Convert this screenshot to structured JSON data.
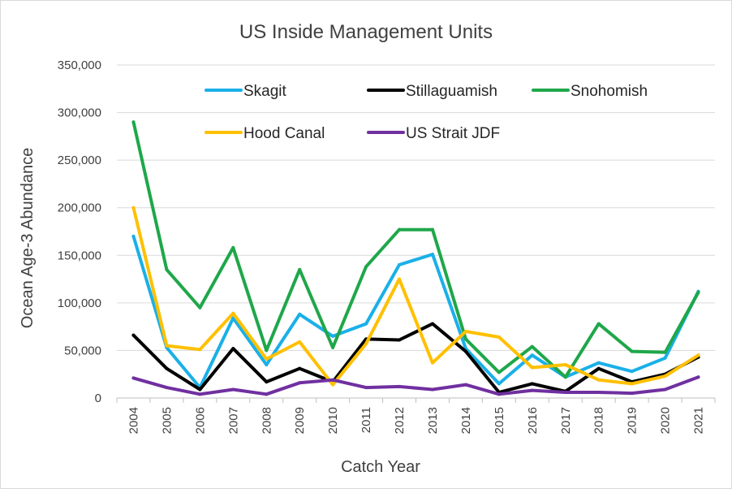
{
  "chart_data": {
    "type": "line",
    "title": "US Inside Management Units",
    "xlabel": "Catch Year",
    "ylabel": "Ocean Age-3 Abundance",
    "ylim": [
      0,
      350000
    ],
    "y_ticks": [
      0,
      50000,
      100000,
      150000,
      200000,
      250000,
      300000,
      350000
    ],
    "y_tick_labels": [
      "0",
      "50,000",
      "100,000",
      "150,000",
      "200,000",
      "250,000",
      "300,000",
      "350,000"
    ],
    "categories": [
      "2004",
      "2005",
      "2006",
      "2007",
      "2008",
      "2009",
      "2010",
      "2011",
      "2012",
      "2013",
      "2014",
      "2015",
      "2016",
      "2017",
      "2018",
      "2019",
      "2020",
      "2021"
    ],
    "grid": "horizontal",
    "legend_position": "top, inside plot",
    "series": [
      {
        "name": "Skagit",
        "color": "#1ab0e8",
        "values": [
          170000,
          53000,
          11000,
          84000,
          35000,
          88000,
          65000,
          78000,
          140000,
          151000,
          52000,
          15000,
          45000,
          22000,
          37000,
          28000,
          42000,
          112000
        ]
      },
      {
        "name": "Stillaguamish",
        "color": "#000000",
        "values": [
          66000,
          31000,
          9000,
          52000,
          17000,
          31000,
          17000,
          62000,
          61000,
          78000,
          49000,
          6000,
          15000,
          7000,
          31000,
          17000,
          25000,
          43000
        ]
      },
      {
        "name": "Snohomish",
        "color": "#1fa74a",
        "values": [
          290000,
          135000,
          95000,
          158000,
          50000,
          135000,
          53000,
          138000,
          177000,
          177000,
          62000,
          27000,
          54000,
          22000,
          78000,
          49000,
          48000,
          111000
        ]
      },
      {
        "name": "Hood Canal",
        "color": "#ffc000",
        "values": [
          200000,
          55000,
          51000,
          89000,
          41000,
          59000,
          14000,
          57000,
          125000,
          37000,
          70000,
          64000,
          32000,
          35000,
          19000,
          15000,
          23000,
          45000
        ]
      },
      {
        "name": "US Strait JDF",
        "color": "#7030a0",
        "values": [
          21000,
          11000,
          4000,
          9000,
          4000,
          16000,
          19000,
          11000,
          12000,
          9000,
          14000,
          4000,
          8000,
          6000,
          6000,
          5000,
          9000,
          22000
        ]
      }
    ]
  }
}
